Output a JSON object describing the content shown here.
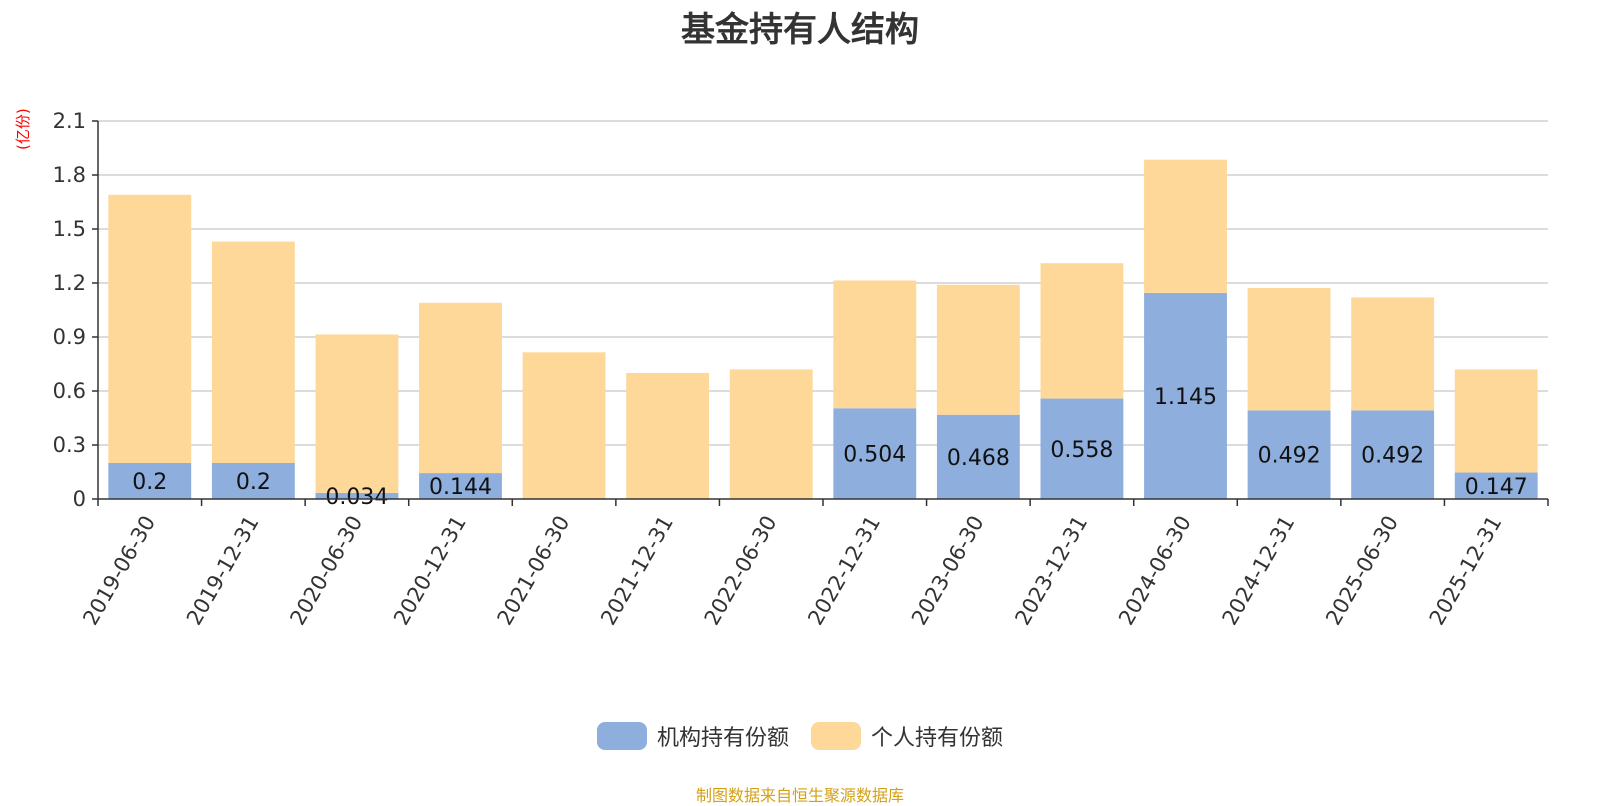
{
  "chart_data": {
    "type": "bar",
    "stacked": true,
    "title": "基金持有人结构",
    "unit_label": "(亿份)",
    "categories": [
      "2019-06-30",
      "2019-12-31",
      "2020-06-30",
      "2020-12-31",
      "2021-06-30",
      "2021-12-31",
      "2022-06-30",
      "2022-12-31",
      "2023-06-30",
      "2023-12-31",
      "2024-06-30",
      "2024-12-31",
      "2025-06-30",
      "2025-12-31"
    ],
    "series": [
      {
        "name": "机构持有份额",
        "color": "#8eaedd",
        "values": [
          0.2,
          0.2,
          0.034,
          0.144,
          0,
          0,
          0,
          0.504,
          0.468,
          0.558,
          1.145,
          0.492,
          0.492,
          0.147
        ],
        "labels": [
          "0.2",
          "0.2",
          "0.034",
          "0.144",
          "",
          "",
          "",
          "0.504",
          "0.468",
          "0.558",
          "1.145",
          "0.492",
          "0.492",
          "0.147"
        ]
      },
      {
        "name": "个人持有份额",
        "color": "#fed898",
        "values": [
          1.49,
          1.23,
          0.88,
          0.946,
          0.815,
          0.7,
          0.72,
          0.71,
          0.722,
          0.752,
          0.74,
          0.68,
          0.628,
          0.573
        ]
      }
    ],
    "ylim": [
      0,
      2.1
    ],
    "yticks": [
      "0",
      "0.3",
      "0.6",
      "0.9",
      "1.2",
      "1.5",
      "1.8",
      "2.1"
    ],
    "grid": true,
    "legend_position": "bottom"
  },
  "source_note": "制图数据来自恒生聚源数据库"
}
